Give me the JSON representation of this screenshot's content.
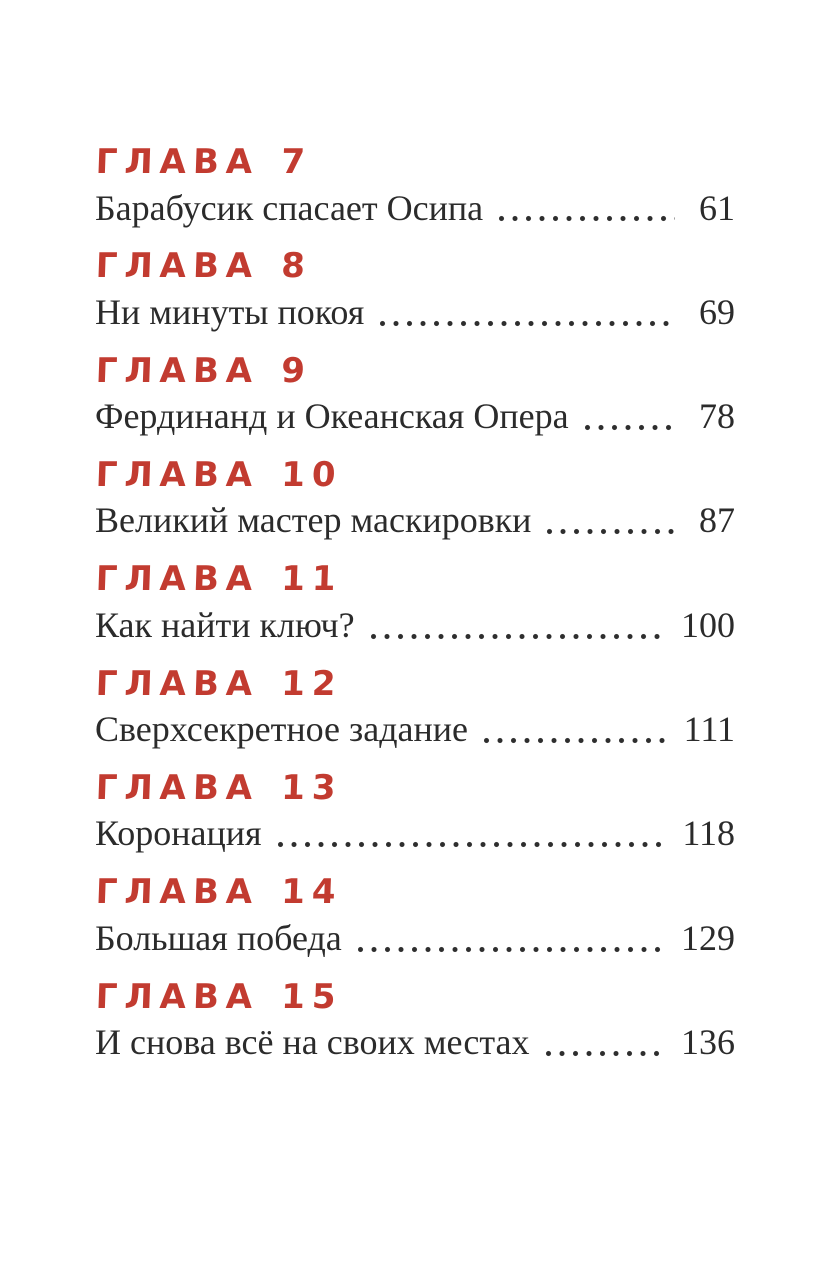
{
  "page": {
    "background_color": "#ffffff",
    "heading_color": "#c23b30",
    "text_color": "#2b2b2b"
  },
  "toc": {
    "chapter_word": "ГЛАВА",
    "entries": [
      {
        "number": "7",
        "title": "Барабусик спасает Осипа",
        "page": "61"
      },
      {
        "number": "8",
        "title": "Ни минуты покоя",
        "page": "69"
      },
      {
        "number": "9",
        "title": "Фердинанд и Океанская Опера",
        "page": "78"
      },
      {
        "number": "10",
        "title": "Великий мастер маскировки",
        "page": "87"
      },
      {
        "number": "11",
        "title": "Как найти ключ?",
        "page": "100"
      },
      {
        "number": "12",
        "title": "Сверхсекретное задание",
        "page": "111"
      },
      {
        "number": "13",
        "title": "Коронация",
        "page": "118"
      },
      {
        "number": "14",
        "title": "Большая победа",
        "page": "129"
      },
      {
        "number": "15",
        "title": "И снова всё на своих местах",
        "page": "136"
      }
    ]
  }
}
